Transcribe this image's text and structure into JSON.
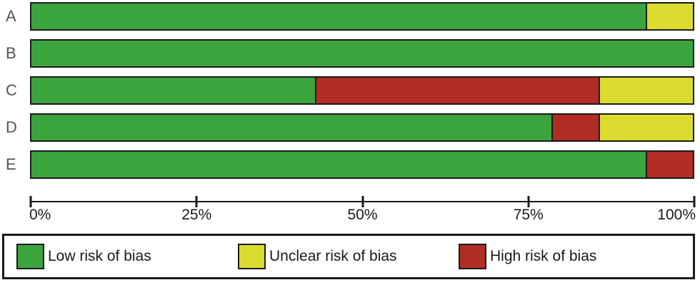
{
  "chart_data": {
    "type": "bar",
    "orientation": "horizontal",
    "stacked": true,
    "unit": "%",
    "title": "",
    "xlabel": "",
    "ylabel": "",
    "xlim": [
      0,
      100
    ],
    "grid": false,
    "legend_position": "bottom",
    "categories": [
      "A",
      "B",
      "C",
      "D",
      "E"
    ],
    "series": [
      {
        "name": "Low risk of bias",
        "color": "#3BA43E",
        "values": [
          92.9,
          100,
          42.9,
          78.6,
          92.9
        ]
      },
      {
        "name": "High risk of bias",
        "color": "#B22D24",
        "values": [
          0,
          0,
          42.9,
          7.1,
          7.1
        ]
      },
      {
        "name": "Unclear risk of bias",
        "color": "#DCDC30",
        "values": [
          7.1,
          0,
          14.3,
          14.3,
          0
        ]
      }
    ]
  },
  "x_axis": {
    "ticks": [
      {
        "label": "0%",
        "value": 0
      },
      {
        "label": "25%",
        "value": 25
      },
      {
        "label": "50%",
        "value": 50
      },
      {
        "label": "75%",
        "value": 75
      },
      {
        "label": "100%",
        "value": 100
      }
    ]
  },
  "legend": {
    "items": [
      {
        "label": "Low risk of bias",
        "color": "#3BA43E"
      },
      {
        "label": "Unclear risk of bias",
        "color": "#DCDC30"
      },
      {
        "label": "High risk of bias",
        "color": "#B22D24"
      }
    ]
  }
}
